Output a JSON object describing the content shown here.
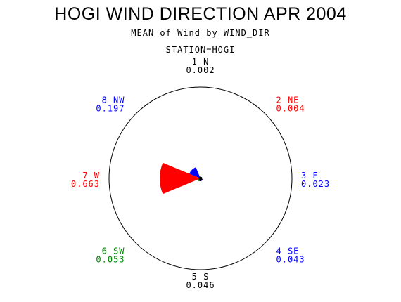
{
  "header": {
    "title": "HOGI WIND DIRECTION APR 2004",
    "subtitle": "MEAN of Wind by WIND_DIR",
    "station": "STATION=HOGI"
  },
  "chart_data": {
    "type": "star",
    "title": "HOGI WIND DIRECTION APR 2004",
    "subtitle": "MEAN of Wind by WIND_DIR",
    "group": "STATION=HOGI",
    "max_value": 0.663,
    "directions": [
      {
        "label": "1 N",
        "value": 0.002,
        "value_text": "0.002",
        "angle": 0,
        "color": "#000000"
      },
      {
        "label": "2 NE",
        "value": 0.004,
        "value_text": "0.004",
        "angle": 45,
        "color": "#ff0000"
      },
      {
        "label": "3 E",
        "value": 0.023,
        "value_text": "0.023",
        "angle": 90,
        "color": "#0000ff"
      },
      {
        "label": "4 SE",
        "value": 0.043,
        "value_text": "0.043",
        "angle": 135,
        "color": "#0000ff"
      },
      {
        "label": "5 S",
        "value": 0.046,
        "value_text": "0.046",
        "angle": 180,
        "color": "#000000"
      },
      {
        "label": "6 SW",
        "value": 0.053,
        "value_text": "0.053",
        "angle": 225,
        "color": "#008000"
      },
      {
        "label": "7 W",
        "value": 0.663,
        "value_text": "0.663",
        "angle": 270,
        "color": "#ff0000"
      },
      {
        "label": "8 NW",
        "value": 0.197,
        "value_text": "0.197",
        "angle": 315,
        "color": "#0000ff"
      }
    ]
  }
}
